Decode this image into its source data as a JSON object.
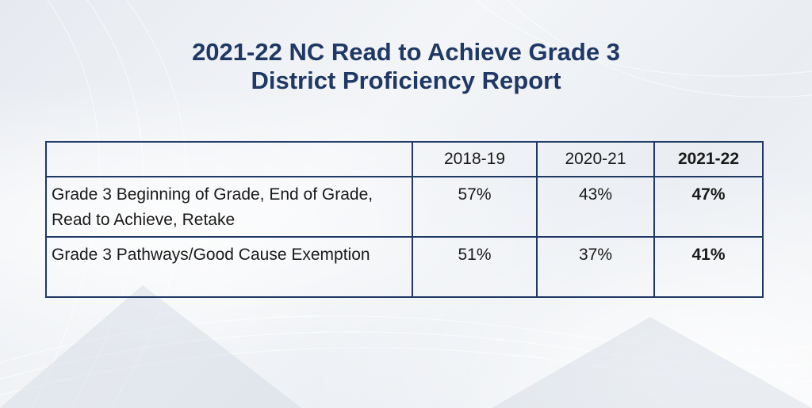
{
  "title": {
    "line1": "2021-22 NC Read to Achieve Grade 3",
    "line2": "District Proficiency Report"
  },
  "table": {
    "headers": [
      "",
      "2018-19",
      "2020-21",
      "2021-22"
    ],
    "rows": [
      {
        "label": "Grade 3 Beginning of Grade, End of Grade, Read to Achieve, Retake",
        "values": [
          "57%",
          "43%",
          "47%"
        ]
      },
      {
        "label": "Grade 3 Pathways/Good Cause Exemption",
        "values": [
          "51%",
          "37%",
          "41%"
        ]
      }
    ]
  },
  "colors": {
    "title": "#1f3864",
    "border": "#1f3864",
    "text": "#1a1a1a"
  }
}
